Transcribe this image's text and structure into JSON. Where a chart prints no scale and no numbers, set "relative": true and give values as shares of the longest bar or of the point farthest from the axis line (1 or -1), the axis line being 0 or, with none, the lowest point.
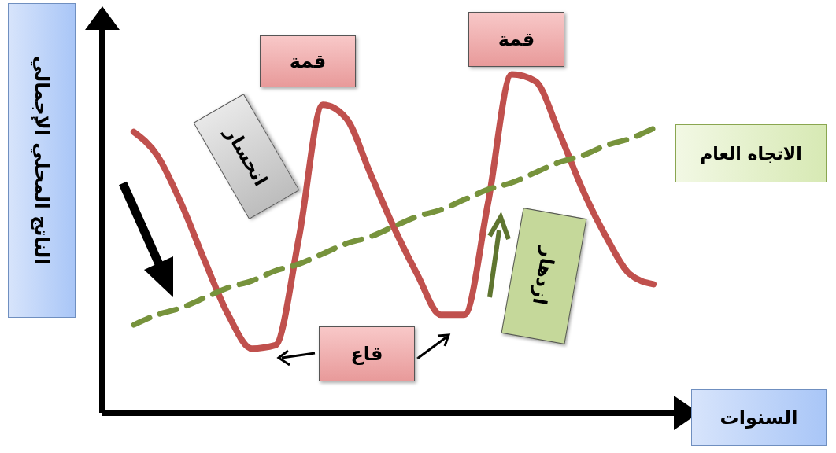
{
  "chart_data": {
    "type": "line",
    "relative": true,
    "xlabel": "السنوات",
    "ylabel": "الناتج المحلي الإجمالي",
    "categories": [
      null,
      null,
      null,
      null,
      null,
      null,
      null,
      null,
      null,
      null,
      null,
      null,
      null,
      null,
      null,
      null,
      null,
      null,
      null,
      null,
      null,
      null,
      null
    ],
    "series": [
      {
        "color": "#c0504d",
        "values": [
          0.83,
          0.76,
          0.62,
          0.45,
          0.29,
          0.19,
          0.2,
          0.52,
          0.91,
          0.87,
          0.71,
          0.55,
          0.41,
          0.29,
          0.29,
          0.62,
          1.0,
          0.98,
          0.83,
          0.66,
          0.52,
          0.41,
          0.38
        ]
      },
      {
        "name": "الاتجاه العام",
        "color": "#77933c",
        "line_style": "dashed",
        "values": [
          0.26,
          0.29,
          0.31,
          0.34,
          0.37,
          0.39,
          0.42,
          0.44,
          0.47,
          0.5,
          0.52,
          0.55,
          0.58,
          0.6,
          0.63,
          0.66,
          0.68,
          0.71,
          0.74,
          0.76,
          0.79,
          0.81,
          0.84
        ]
      }
    ],
    "annotations": [
      "قمة",
      "قمة",
      "قاع",
      "انحسار",
      "ازدهار"
    ],
    "legend": false,
    "grid": false,
    "marker": "none"
  }
}
